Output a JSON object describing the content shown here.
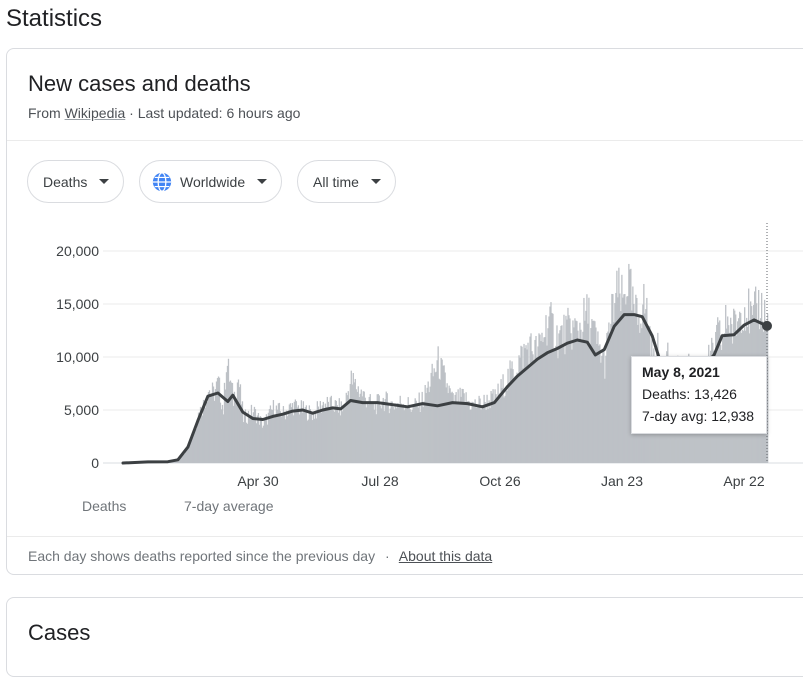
{
  "page": {
    "title": "Statistics"
  },
  "card": {
    "title": "New cases and deaths",
    "source_prefix": "From",
    "source_link": "Wikipedia",
    "updated": "· Last updated: 6 hours ago"
  },
  "filters": {
    "metric": "Deaths",
    "region": "Worldwide",
    "range": "All time"
  },
  "chart_data": {
    "type": "bar",
    "y_ticks": [
      "20,000",
      "15,000",
      "10,000",
      "5,000",
      "0"
    ],
    "x_ticks": [
      "Apr 30",
      "Jul 28",
      "Oct 26",
      "Jan 23",
      "Apr 22"
    ],
    "ylim": [
      0,
      20000
    ],
    "series": [
      {
        "name": "Deaths",
        "color": "#bdc1c6",
        "kind": "bar"
      },
      {
        "name": "7-day average",
        "color": "#3c4043",
        "kind": "line"
      }
    ],
    "average_curve": [
      [
        0,
        0
      ],
      [
        25,
        100
      ],
      [
        45,
        120
      ],
      [
        55,
        300
      ],
      [
        65,
        1500
      ],
      [
        75,
        4000
      ],
      [
        85,
        6300
      ],
      [
        95,
        6600
      ],
      [
        105,
        5800
      ],
      [
        110,
        6400
      ],
      [
        120,
        4800
      ],
      [
        130,
        4200
      ],
      [
        140,
        4100
      ],
      [
        150,
        4400
      ],
      [
        160,
        4600
      ],
      [
        170,
        4900
      ],
      [
        180,
        5000
      ],
      [
        190,
        4700
      ],
      [
        200,
        5000
      ],
      [
        210,
        5200
      ],
      [
        218,
        5100
      ],
      [
        228,
        5900
      ],
      [
        240,
        5700
      ],
      [
        255,
        5700
      ],
      [
        270,
        5500
      ],
      [
        285,
        5300
      ],
      [
        300,
        5600
      ],
      [
        315,
        5400
      ],
      [
        330,
        5700
      ],
      [
        345,
        5600
      ],
      [
        360,
        5300
      ],
      [
        372,
        5700
      ],
      [
        385,
        7200
      ],
      [
        395,
        8200
      ],
      [
        405,
        9000
      ],
      [
        415,
        9800
      ],
      [
        425,
        10400
      ],
      [
        435,
        10800
      ],
      [
        445,
        11300
      ],
      [
        455,
        11600
      ],
      [
        465,
        11400
      ],
      [
        473,
        10200
      ],
      [
        482,
        10700
      ],
      [
        492,
        12900
      ],
      [
        502,
        14000
      ],
      [
        512,
        14000
      ],
      [
        520,
        13800
      ],
      [
        530,
        12000
      ],
      [
        538,
        9600
      ],
      [
        548,
        8300
      ],
      [
        558,
        8200
      ],
      [
        570,
        8600
      ],
      [
        582,
        9200
      ],
      [
        592,
        10200
      ],
      [
        600,
        12000
      ],
      [
        612,
        12100
      ],
      [
        622,
        13000
      ],
      [
        632,
        13500
      ],
      [
        645,
        12938
      ]
    ],
    "bars": [
      [
        0,
        50
      ],
      [
        10,
        80
      ],
      [
        20,
        100
      ],
      [
        30,
        130
      ],
      [
        40,
        150
      ],
      [
        50,
        200
      ],
      [
        60,
        800
      ],
      [
        70,
        2800
      ],
      [
        75,
        4600
      ],
      [
        80,
        5500
      ],
      [
        85,
        7000
      ],
      [
        90,
        6500
      ],
      [
        95,
        7500
      ],
      [
        100,
        5000
      ],
      [
        103,
        9700
      ],
      [
        110,
        6000
      ],
      [
        115,
        8000
      ],
      [
        120,
        4200
      ],
      [
        130,
        4900
      ],
      [
        140,
        3600
      ],
      [
        150,
        5200
      ],
      [
        160,
        4700
      ],
      [
        170,
        5400
      ],
      [
        180,
        5000
      ],
      [
        190,
        4600
      ],
      [
        200,
        5600
      ],
      [
        210,
        5400
      ],
      [
        220,
        5100
      ],
      [
        228,
        7800
      ],
      [
        240,
        6400
      ],
      [
        250,
        5300
      ],
      [
        260,
        5900
      ],
      [
        270,
        5500
      ],
      [
        280,
        5800
      ],
      [
        290,
        5200
      ],
      [
        300,
        6000
      ],
      [
        315,
        9500
      ],
      [
        330,
        5800
      ],
      [
        340,
        6200
      ],
      [
        350,
        5400
      ],
      [
        360,
        5700
      ],
      [
        372,
        6100
      ],
      [
        385,
        8000
      ],
      [
        395,
        9500
      ],
      [
        405,
        11000
      ],
      [
        415,
        10500
      ],
      [
        425,
        13500
      ],
      [
        435,
        11800
      ],
      [
        445,
        12500
      ],
      [
        455,
        12600
      ],
      [
        465,
        14000
      ],
      [
        475,
        11000
      ],
      [
        482,
        9500
      ],
      [
        490,
        14500
      ],
      [
        495,
        16000
      ],
      [
        500,
        15000
      ],
      [
        505,
        17500
      ],
      [
        510,
        14500
      ],
      [
        515,
        13500
      ],
      [
        520,
        15200
      ],
      [
        525,
        14000
      ],
      [
        530,
        9200
      ],
      [
        535,
        10500
      ],
      [
        540,
        8000
      ],
      [
        545,
        10500
      ],
      [
        550,
        6800
      ],
      [
        555,
        9800
      ],
      [
        560,
        7500
      ],
      [
        565,
        9000
      ],
      [
        570,
        8000
      ],
      [
        580,
        9000
      ],
      [
        590,
        10200
      ],
      [
        595,
        12000
      ],
      [
        600,
        11500
      ],
      [
        605,
        14000
      ],
      [
        610,
        12500
      ],
      [
        615,
        13500
      ],
      [
        620,
        15000
      ],
      [
        625,
        14500
      ],
      [
        630,
        13000
      ],
      [
        635,
        15000
      ],
      [
        640,
        14500
      ],
      [
        645,
        13426
      ]
    ],
    "tooltip": {
      "date": "May 8, 2021",
      "deaths_label": "Deaths: 13,426",
      "avg_label": "7-day avg: 12,938",
      "deaths": 13426,
      "avg": 12938
    }
  },
  "legend": {
    "bars": "Deaths",
    "line": "7-day average"
  },
  "footer": {
    "note": "Each day shows deaths reported since the previous day",
    "separator": "·",
    "about": "About this data"
  },
  "next_card": {
    "title": "Cases"
  }
}
